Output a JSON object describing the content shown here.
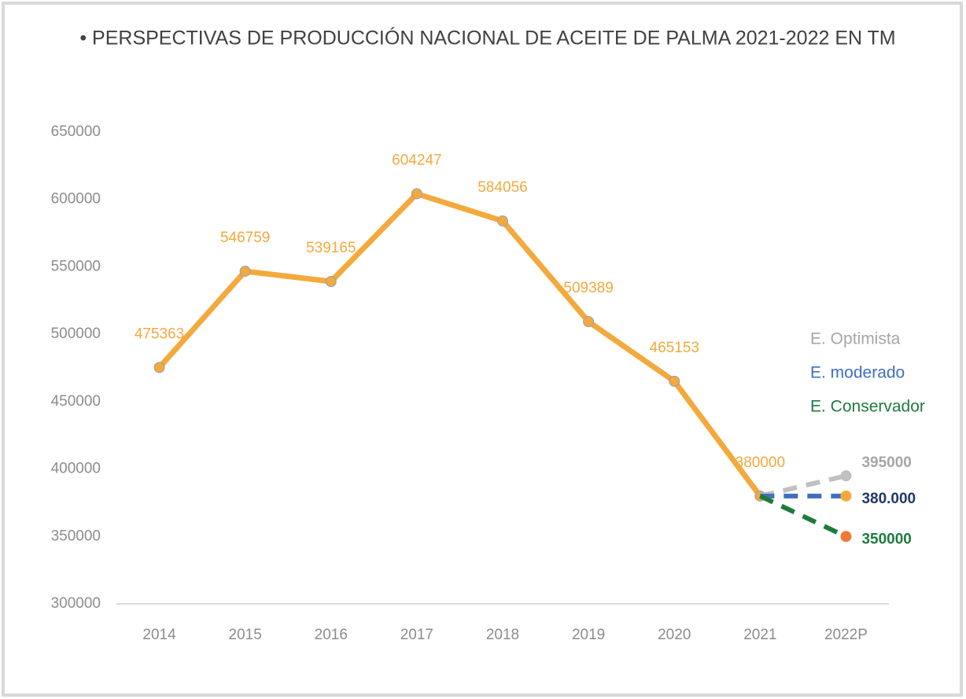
{
  "chart_data": {
    "type": "line",
    "title": "• PERSPECTIVAS DE PRODUCCIÓN NACIONAL DE ACEITE DE PALMA 2021-2022 EN TM",
    "categories": [
      "2014",
      "2015",
      "2016",
      "2017",
      "2018",
      "2019",
      "2020",
      "2021",
      "2022P"
    ],
    "ylim": [
      300000,
      650000
    ],
    "yticks": [
      300000,
      350000,
      400000,
      450000,
      500000,
      550000,
      600000,
      650000
    ],
    "grid": false,
    "legend": "right",
    "series": [
      {
        "color": "#f4a93c",
        "values": [
          475363,
          546759,
          539165,
          604247,
          584056,
          509389,
          465153,
          380000,
          null
        ]
      },
      {
        "name": "E. Optimista",
        "color": "#c0c0c0",
        "marker_color": "#c0c0c0",
        "values": [
          null,
          null,
          null,
          null,
          null,
          null,
          null,
          380000,
          395000
        ]
      },
      {
        "name": "E. moderado",
        "color": "#3f6fc2",
        "marker_color": "#f4a93c",
        "values": [
          null,
          null,
          null,
          null,
          null,
          null,
          null,
          380000,
          380000
        ],
        "value_labels": [
          null,
          null,
          null,
          null,
          null,
          null,
          null,
          null,
          "380.000"
        ]
      },
      {
        "name": "E. Conservador",
        "color": "#1e7b3c",
        "marker_color": "#ee7a35",
        "values": [
          null,
          null,
          null,
          null,
          null,
          null,
          null,
          380000,
          350000
        ]
      }
    ]
  }
}
